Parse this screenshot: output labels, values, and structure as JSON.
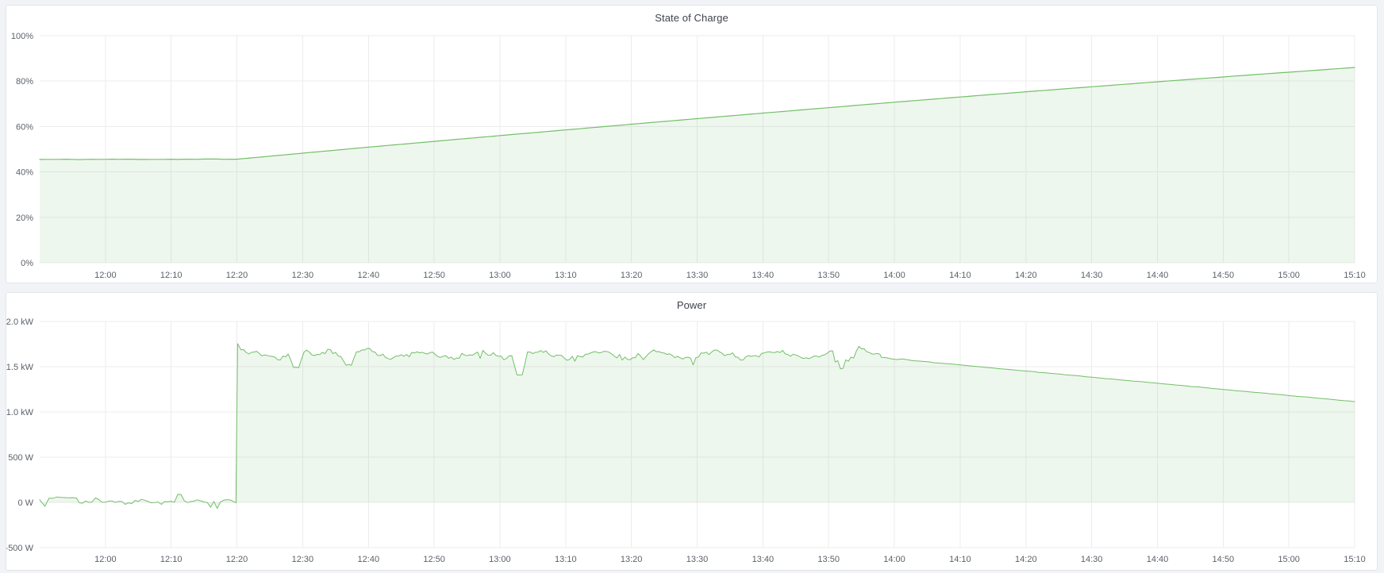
{
  "page": {
    "background_color": "#f2f3f7",
    "accent_color": "#73bf69"
  },
  "chart_data": [
    {
      "type": "area",
      "title": "State of Charge",
      "legend": "none",
      "grid": true,
      "x_axis": {
        "start": "11:50",
        "end": "15:10",
        "tick_interval_minutes": 10,
        "tick_labels": [
          "12:00",
          "12:10",
          "12:20",
          "12:30",
          "12:40",
          "12:50",
          "13:00",
          "13:10",
          "13:20",
          "13:30",
          "13:40",
          "13:50",
          "14:00",
          "14:10",
          "14:20",
          "14:30",
          "14:40",
          "14:50",
          "15:00",
          "15:10"
        ]
      },
      "y_axis": {
        "unit": "%",
        "min": 0,
        "max": 100,
        "tick_values": [
          0,
          20,
          40,
          60,
          80,
          100
        ],
        "tick_labels": [
          "0%",
          "20%",
          "40%",
          "60%",
          "80%",
          "100%"
        ]
      },
      "style": {
        "line_color": "#73bf69",
        "fill_color": "rgba(115,191,105,0.12)",
        "line_width": 1.2
      },
      "series": [
        {
          "name": "State of Charge",
          "unit": "%",
          "description": "Flat at about 45.5% until 12:20, then near-linear rise (slightly tapering) to about 86% at 15:10.",
          "keypoints": [
            [
              "11:50",
              45.5
            ],
            [
              "12:20",
              45.6
            ],
            [
              "12:40",
              50.9
            ],
            [
              "13:00",
              56.0
            ],
            [
              "13:20",
              61.0
            ],
            [
              "13:40",
              65.9
            ],
            [
              "14:00",
              70.7
            ],
            [
              "14:20",
              75.3
            ],
            [
              "14:40",
              79.7
            ],
            [
              "14:55",
              82.9
            ],
            [
              "15:10",
              86.0
            ]
          ],
          "flat_jitter_pct": 0.22
        }
      ]
    },
    {
      "type": "area",
      "title": "Power",
      "legend": "none",
      "grid": true,
      "x_axis": {
        "start": "11:50",
        "end": "15:10",
        "tick_interval_minutes": 10,
        "tick_labels": [
          "12:00",
          "12:10",
          "12:20",
          "12:30",
          "12:40",
          "12:50",
          "13:00",
          "13:10",
          "13:20",
          "13:30",
          "13:40",
          "13:50",
          "14:00",
          "14:10",
          "14:20",
          "14:30",
          "14:40",
          "14:50",
          "15:00",
          "15:10"
        ]
      },
      "y_axis": {
        "unit": "W",
        "min": -500,
        "max": 2000,
        "tick_values": [
          -500,
          0,
          500,
          1000,
          1500,
          2000
        ],
        "tick_labels": [
          "-500 W",
          "0 W",
          "500 W",
          "1.0 kW",
          "1.5 kW",
          "2.0 kW"
        ]
      },
      "style": {
        "line_color": "#73bf69",
        "fill_color": "rgba(115,191,105,0.12)",
        "line_width": 1,
        "fill_baseline_value": 0
      },
      "series": [
        {
          "name": "Power",
          "unit": "W",
          "description": "Noisy around 0 W until 12:20, vertical jump to ~1.75 kW, noisy plateau around 1.63 kW until ~13:58, then smooth linear taper down to ~1.11 kW at 15:10.",
          "keypoints": [
            [
              "11:50",
              30
            ],
            [
              "12:00",
              0
            ],
            [
              "12:19",
              -5
            ],
            [
              "12:20",
              1754
            ],
            [
              "12:25",
              1600
            ],
            [
              "12:35",
              1680
            ],
            [
              "13:03",
              1410
            ],
            [
              "13:30",
              1630
            ],
            [
              "13:55",
              1730
            ],
            [
              "13:58",
              1600
            ],
            [
              "14:10",
              1527
            ],
            [
              "14:30",
              1390
            ],
            [
              "14:50",
              1252
            ],
            [
              "15:10",
              1114
            ]
          ],
          "segments": [
            {
              "phase": "idle",
              "from": "11:50",
              "to": "12:20",
              "mean_w": 5,
              "noise_w": 40
            },
            {
              "phase": "charging",
              "from": "12:20",
              "to": "13:58",
              "mean_w": 1630,
              "noise_w": 60,
              "initial_peak_w": 1754,
              "notable_dips": [
                [
                  "12:29",
                  1490
                ],
                [
                  "12:37",
                  1520
                ],
                [
                  "13:03",
                  1410
                ],
                [
                  "13:52",
                  1480
                ]
              ]
            },
            {
              "phase": "taper",
              "from": "13:58",
              "to": "15:10",
              "start_w": 1600,
              "end_w": 1114
            }
          ]
        }
      ]
    }
  ]
}
